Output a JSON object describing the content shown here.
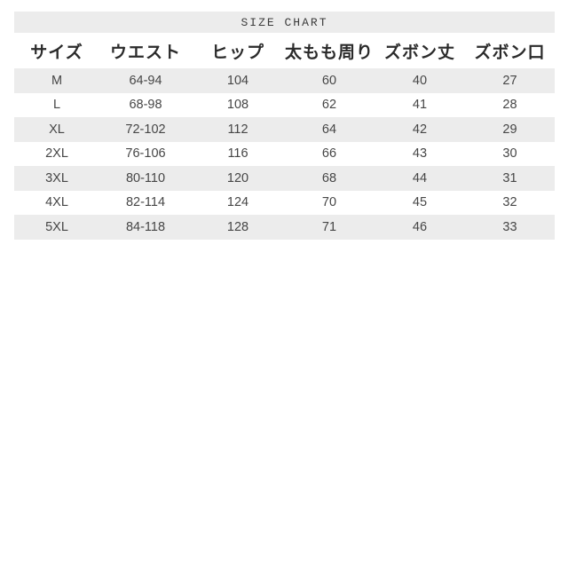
{
  "title": "SIZE CHART",
  "colors": {
    "background": "#ffffff",
    "stripe": "#ececec",
    "title_text": "#3c3c3c",
    "header_text": "#2b2b2b",
    "body_text": "#464646"
  },
  "table": {
    "columns": [
      "サイズ",
      "ウエスト",
      "ヒップ",
      "太もも周り",
      "ズボン丈",
      "ズボン口"
    ],
    "rows": [
      [
        "M",
        "64-94",
        "104",
        "60",
        "40",
        "27"
      ],
      [
        "L",
        "68-98",
        "108",
        "62",
        "41",
        "28"
      ],
      [
        "XL",
        "72-102",
        "112",
        "64",
        "42",
        "29"
      ],
      [
        "2XL",
        "76-106",
        "116",
        "66",
        "43",
        "30"
      ],
      [
        "3XL",
        "80-110",
        "120",
        "68",
        "44",
        "31"
      ],
      [
        "4XL",
        "82-114",
        "124",
        "70",
        "45",
        "32"
      ],
      [
        "5XL",
        "84-118",
        "128",
        "71",
        "46",
        "33"
      ]
    ]
  },
  "chart_data": {
    "type": "table",
    "title": "SIZE CHART",
    "columns": [
      "サイズ",
      "ウエスト",
      "ヒップ",
      "太もも周り",
      "ズボン丈",
      "ズボン口"
    ],
    "rows": [
      [
        "M",
        "64-94",
        "104",
        "60",
        "40",
        "27"
      ],
      [
        "L",
        "68-98",
        "108",
        "62",
        "41",
        "28"
      ],
      [
        "XL",
        "72-102",
        "112",
        "64",
        "42",
        "29"
      ],
      [
        "2XL",
        "76-106",
        "116",
        "66",
        "43",
        "30"
      ],
      [
        "3XL",
        "80-110",
        "120",
        "68",
        "44",
        "31"
      ],
      [
        "4XL",
        "82-114",
        "124",
        "70",
        "45",
        "32"
      ],
      [
        "5XL",
        "84-118",
        "128",
        "71",
        "46",
        "33"
      ]
    ],
    "layout": {
      "striped_rows": [
        0,
        2,
        4,
        6
      ],
      "stripe_color": "#ececec",
      "grid": "off"
    }
  }
}
